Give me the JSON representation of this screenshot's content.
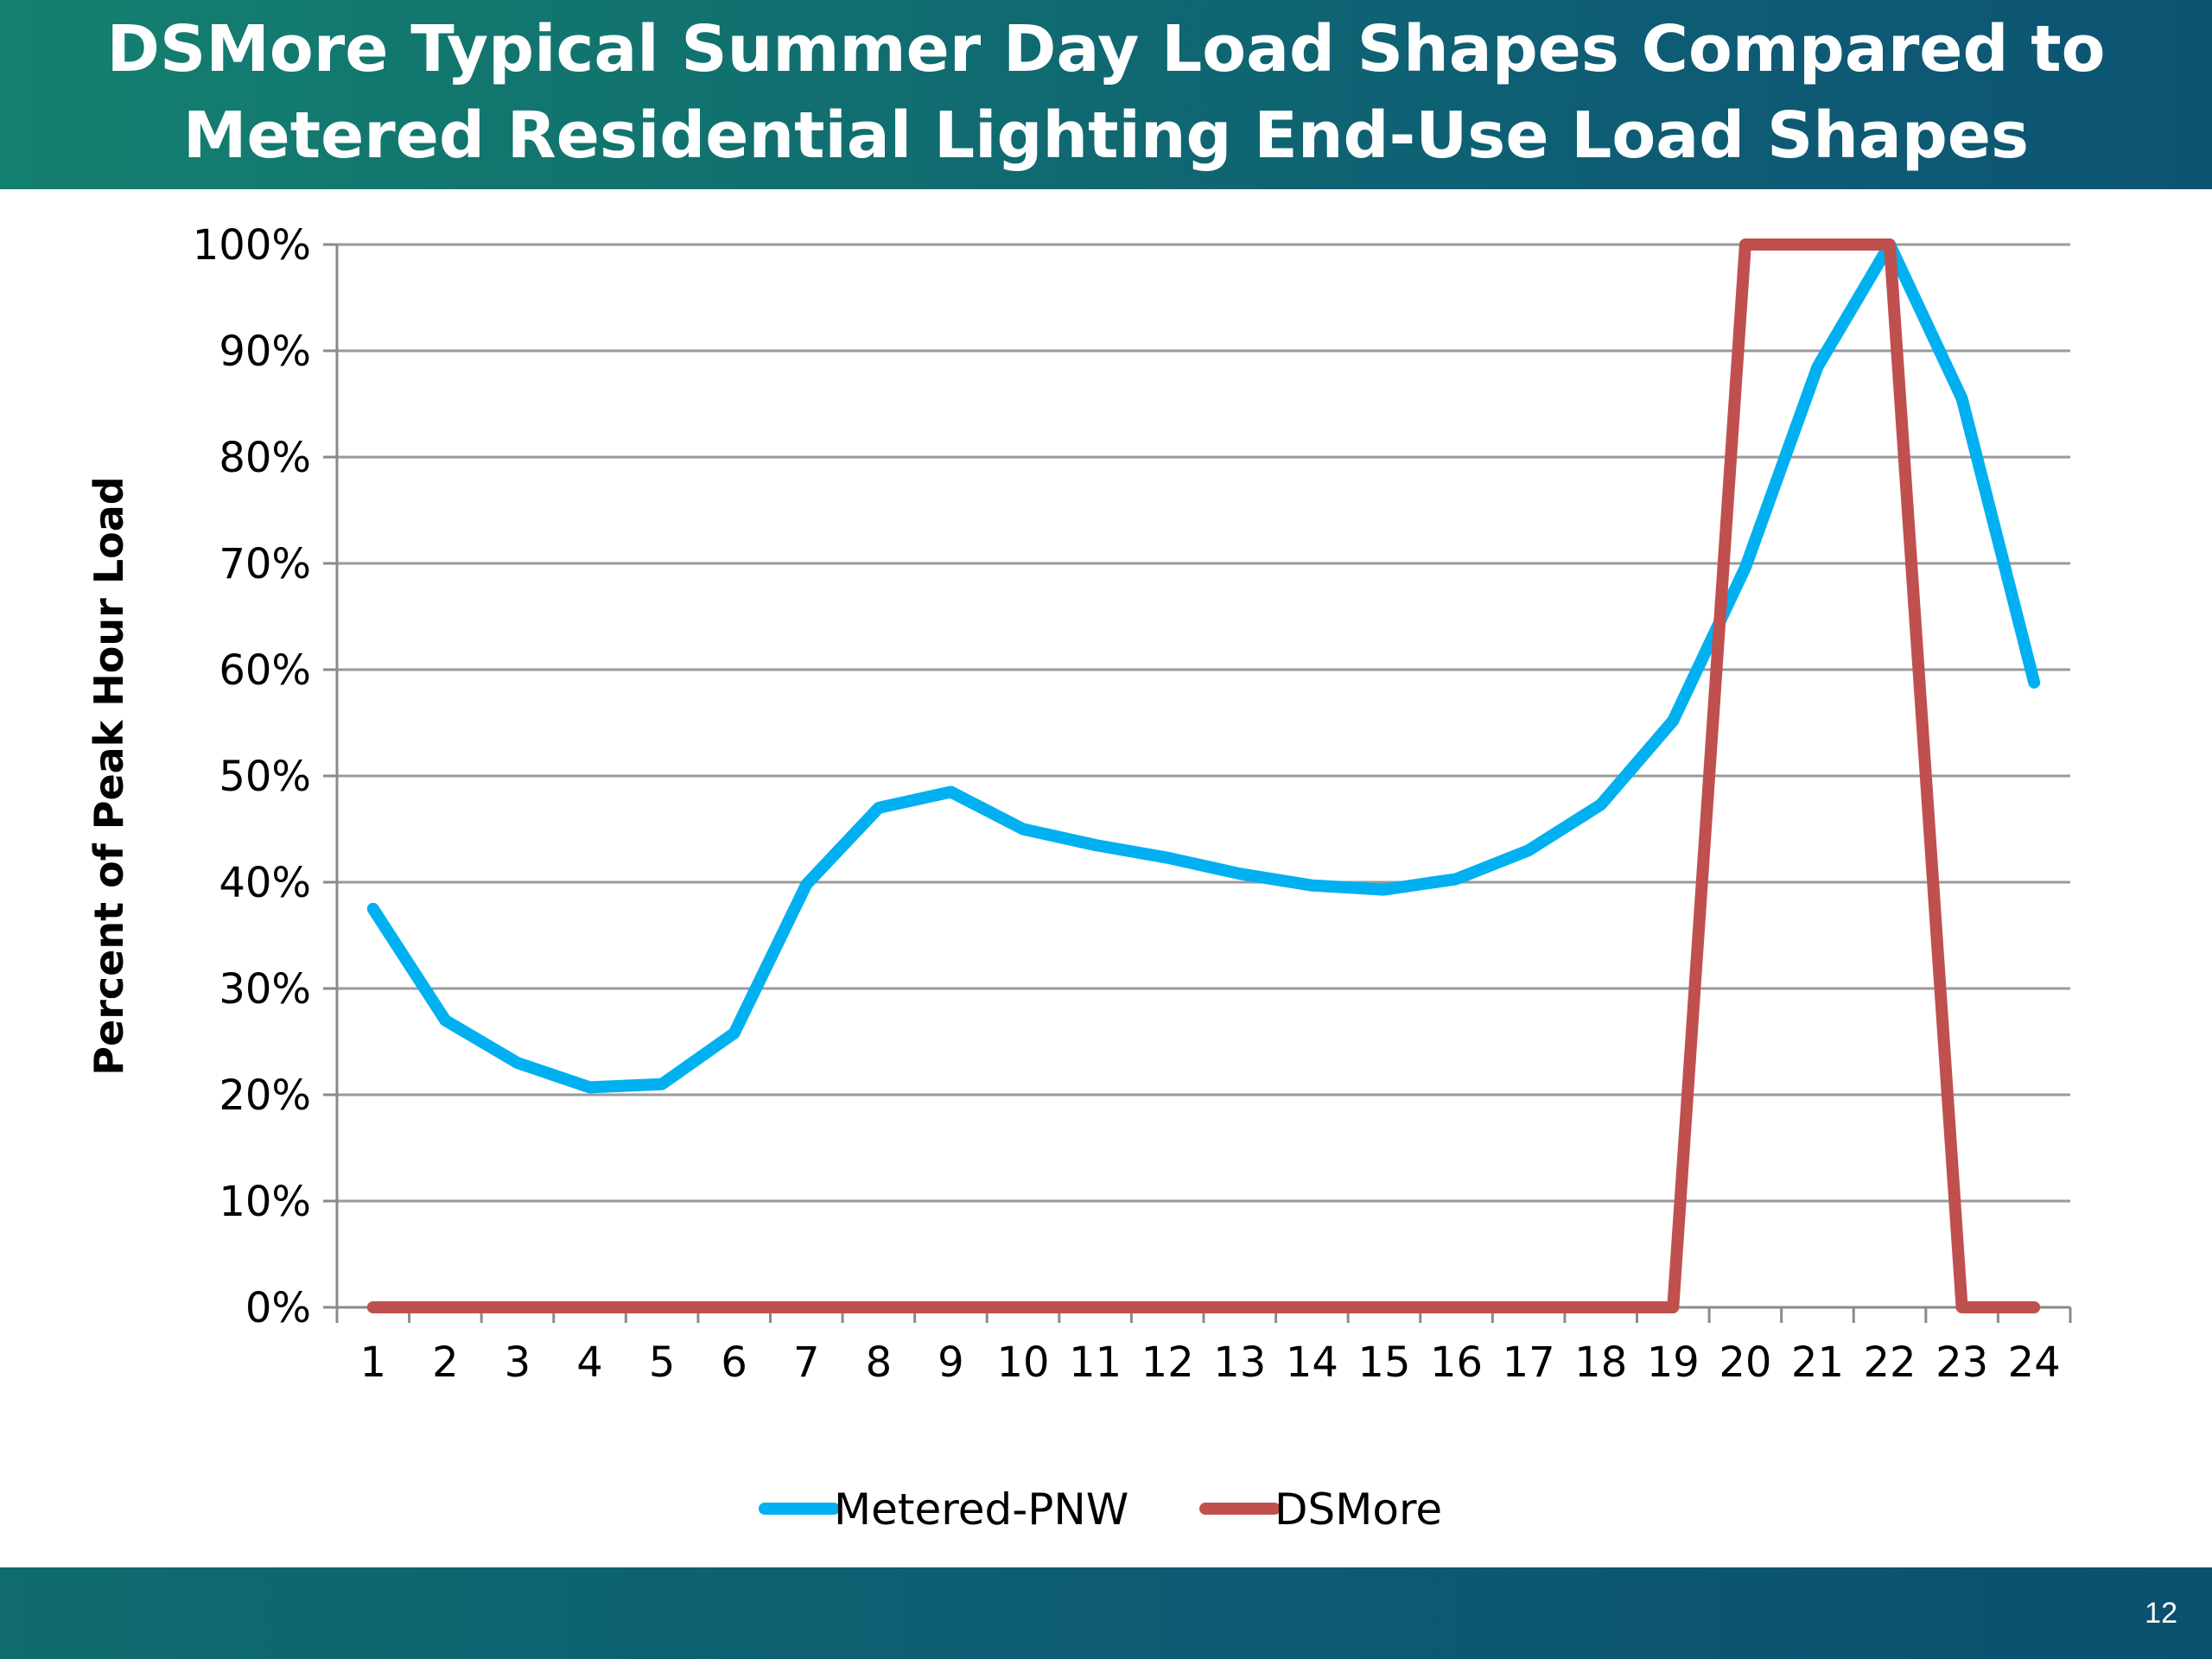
{
  "slide": {
    "title_line1": "DSMore Typical Summer Day Load Shapes Compared to",
    "title_line2": "Metered Residential Lighting End-Use Load Shapes",
    "page_number": "12"
  },
  "chart_data": {
    "type": "line",
    "title": "",
    "xlabel": "",
    "ylabel": "Percent of Peak Hour Load",
    "categories": [
      "1",
      "2",
      "3",
      "4",
      "5",
      "6",
      "7",
      "8",
      "9",
      "10",
      "11",
      "12",
      "13",
      "14",
      "15",
      "16",
      "17",
      "18",
      "19",
      "20",
      "21",
      "22",
      "23",
      "24"
    ],
    "ylim": [
      0,
      100
    ],
    "yticks": [
      0,
      10,
      20,
      30,
      40,
      50,
      60,
      70,
      80,
      90,
      100
    ],
    "ytick_labels": [
      "0%",
      "10%",
      "20%",
      "30%",
      "40%",
      "50%",
      "60%",
      "70%",
      "80%",
      "90%",
      "100%"
    ],
    "grid": true,
    "legend_position": "bottom",
    "series": [
      {
        "name": "Metered-PNW",
        "color": "#00b0f0",
        "values": [
          37.5,
          27,
          23,
          20.7,
          21,
          25.8,
          39.8,
          47,
          48.5,
          45,
          43.5,
          42.3,
          40.8,
          39.7,
          39.3,
          40.3,
          43,
          47.3,
          55.2,
          69.6,
          88.5,
          100,
          85.5,
          58.8
        ]
      },
      {
        "name": "DSMore",
        "color": "#c0504d",
        "values": [
          0,
          0,
          0,
          0,
          0,
          0,
          0,
          0,
          0,
          0,
          0,
          0,
          0,
          0,
          0,
          0,
          0,
          0,
          0,
          100,
          100,
          100,
          0,
          0
        ]
      }
    ]
  }
}
